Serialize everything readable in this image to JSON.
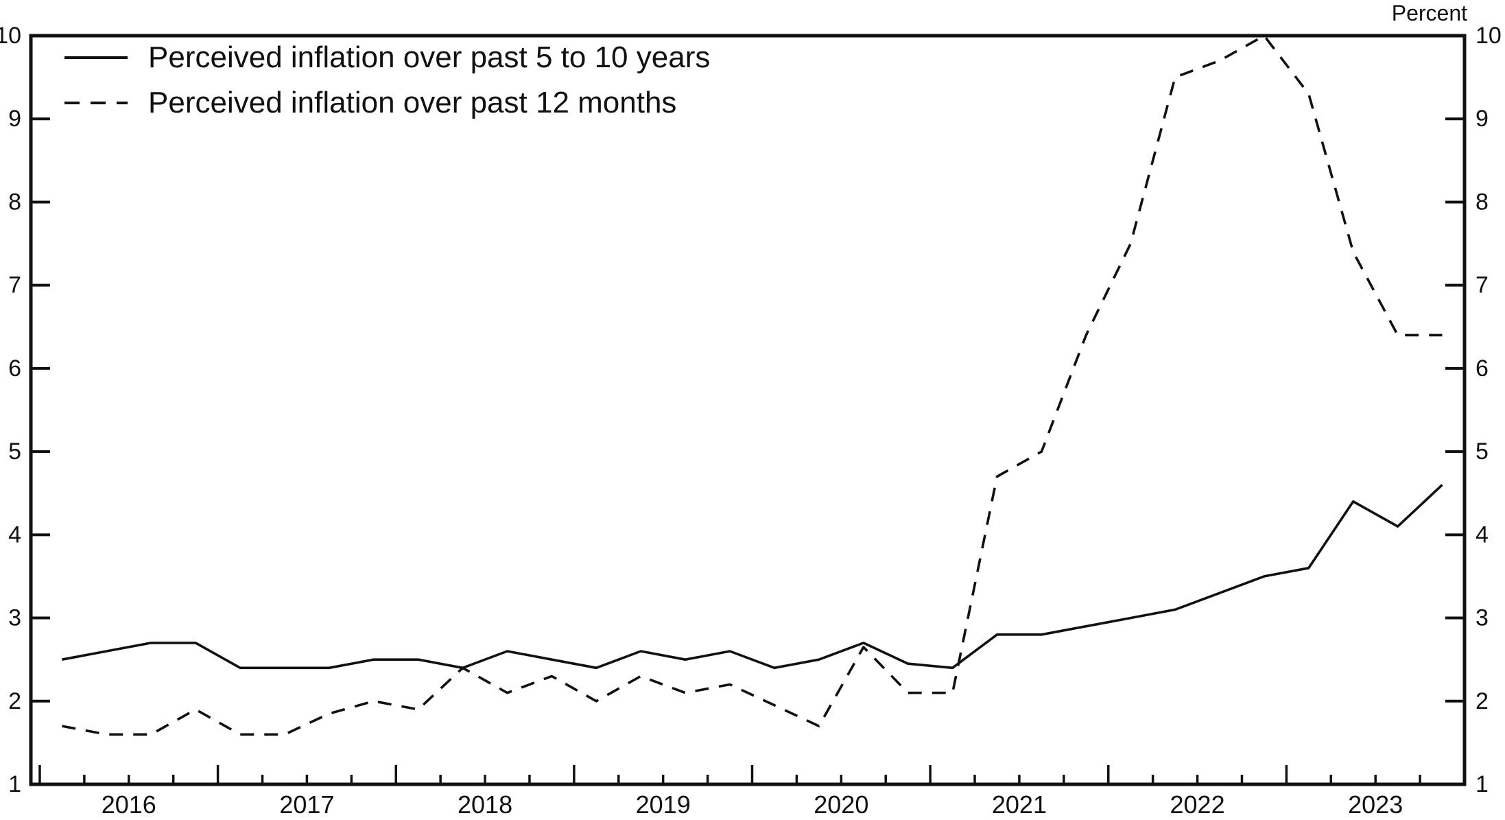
{
  "header": {
    "unit_label": "Percent"
  },
  "legend": [
    {
      "label": "Perceived inflation over past 5 to 10 years",
      "style": "solid"
    },
    {
      "label": "Perceived inflation over past 12 months",
      "style": "dashed"
    }
  ],
  "chart_data": {
    "type": "line",
    "title": "",
    "xlabel": "",
    "ylabel": "Percent",
    "grid": false,
    "legend_position": "top-left",
    "ylim": [
      1,
      10
    ],
    "yticks": [
      1,
      2,
      3,
      4,
      5,
      6,
      7,
      8,
      9,
      10
    ],
    "xlim": [
      2015.95,
      2024.0
    ],
    "year_labels": [
      "2016",
      "2017",
      "2018",
      "2019",
      "2020",
      "2021",
      "2022",
      "2023"
    ],
    "categories": [
      "2016Q1",
      "2016Q2",
      "2016Q3",
      "2016Q4",
      "2017Q1",
      "2017Q2",
      "2017Q3",
      "2017Q4",
      "2018Q1",
      "2018Q2",
      "2018Q3",
      "2018Q4",
      "2019Q1",
      "2019Q2",
      "2019Q3",
      "2019Q4",
      "2020Q1",
      "2020Q2",
      "2020Q3",
      "2020Q4",
      "2021Q1",
      "2021Q2",
      "2021Q3",
      "2021Q4",
      "2022Q1",
      "2022Q2",
      "2022Q3",
      "2022Q4",
      "2023Q1",
      "2023Q2",
      "2023Q3",
      "2023Q4"
    ],
    "series": [
      {
        "name": "Perceived inflation over past 5 to 10 years",
        "style": "solid",
        "color": "#111111",
        "values": [
          2.5,
          2.6,
          2.7,
          2.7,
          2.4,
          2.4,
          2.4,
          2.5,
          2.5,
          2.4,
          2.6,
          2.5,
          2.4,
          2.6,
          2.5,
          2.6,
          2.4,
          2.5,
          2.7,
          2.45,
          2.4,
          2.8,
          2.8,
          2.9,
          3.0,
          3.1,
          3.3,
          3.5,
          3.6,
          4.4,
          4.1,
          4.6
        ]
      },
      {
        "name": "Perceived inflation over past 12 months",
        "style": "dashed",
        "color": "#111111",
        "values": [
          1.7,
          1.6,
          1.6,
          1.9,
          1.6,
          1.6,
          1.85,
          2.0,
          1.9,
          2.4,
          2.1,
          2.3,
          2.0,
          2.3,
          2.1,
          2.2,
          1.95,
          1.7,
          2.65,
          2.1,
          2.1,
          4.7,
          5.0,
          6.4,
          7.5,
          9.5,
          9.7,
          10.0,
          9.3,
          7.4,
          6.4,
          6.4
        ]
      }
    ]
  }
}
